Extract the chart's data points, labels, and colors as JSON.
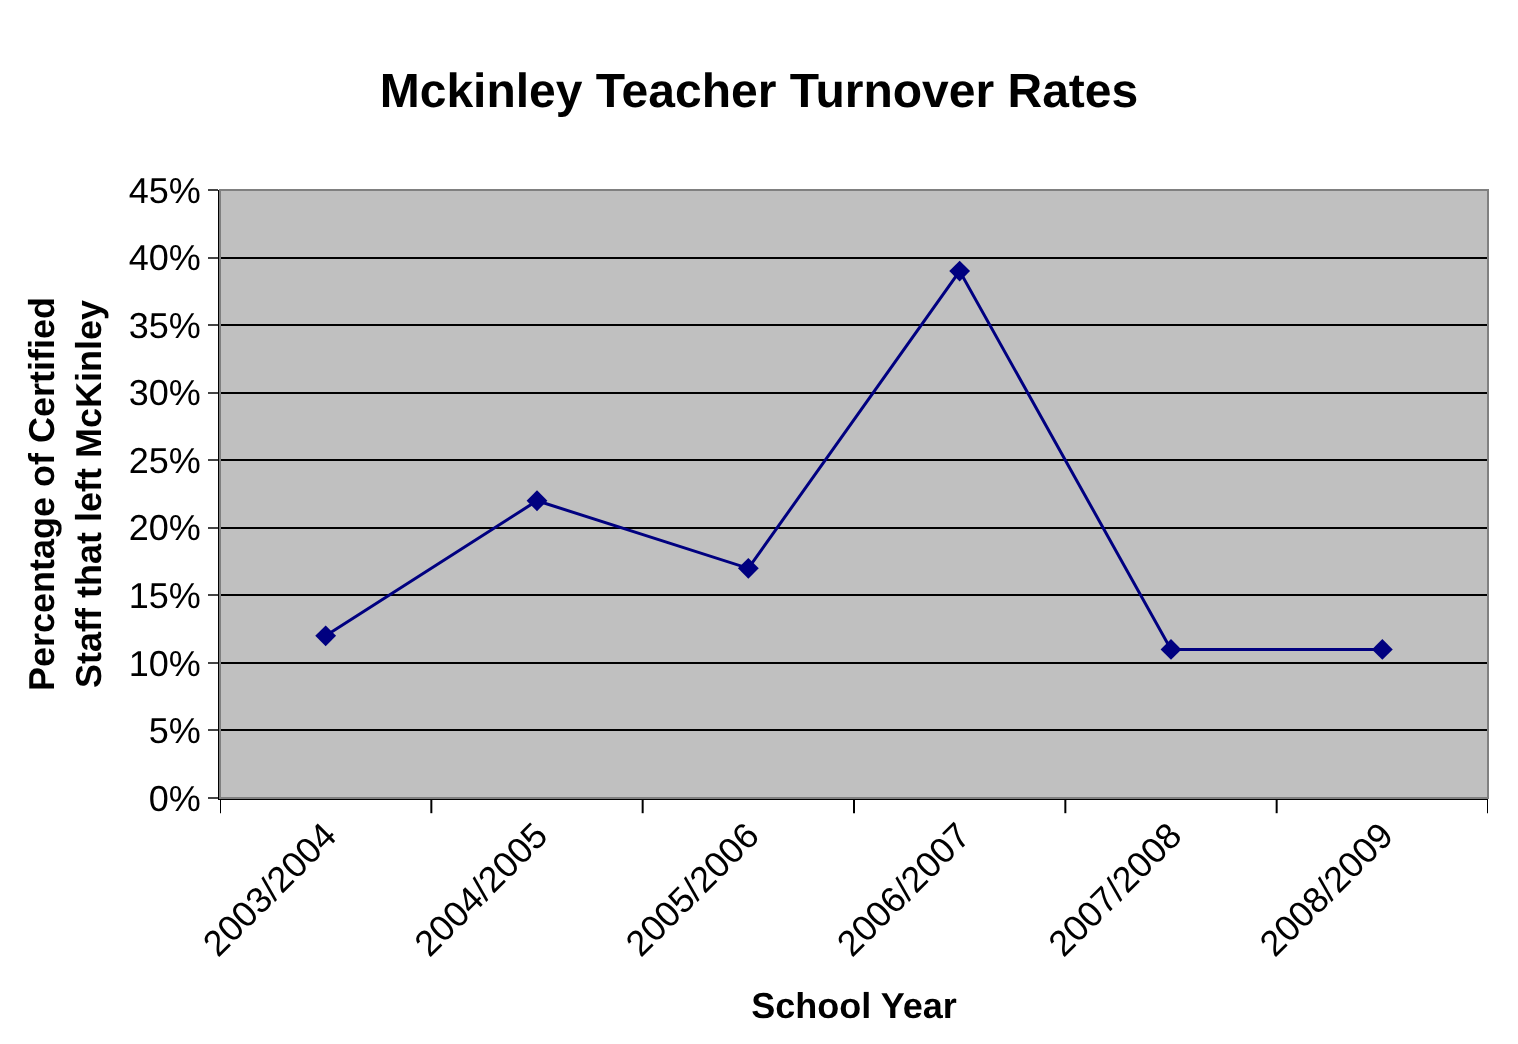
{
  "chart_data": {
    "type": "line",
    "title": "Mckinley Teacher Turnover Rates",
    "xlabel": "School Year",
    "ylabel": "Percentage of Certified Staff that left McKinley",
    "categories": [
      "2003/2004",
      "2004/2005",
      "2005/2006",
      "2006/2007",
      "2007/2008",
      "2008/2009"
    ],
    "series": [
      {
        "color": "#000080",
        "values": [
          12,
          22,
          17,
          39,
          11,
          11
        ]
      }
    ],
    "ylim": [
      0,
      45
    ],
    "yticks": [
      {
        "value": 0,
        "label": "0%"
      },
      {
        "value": 5,
        "label": "5%"
      },
      {
        "value": 10,
        "label": "10%"
      },
      {
        "value": 15,
        "label": "15%"
      },
      {
        "value": 20,
        "label": "20%"
      },
      {
        "value": 25,
        "label": "25%"
      },
      {
        "value": 30,
        "label": "30%"
      },
      {
        "value": 35,
        "label": "35%"
      },
      {
        "value": 40,
        "label": "40%"
      },
      {
        "value": 45,
        "label": "45%"
      }
    ],
    "grid": "y",
    "marker": "diamond",
    "line_style": "solid"
  }
}
